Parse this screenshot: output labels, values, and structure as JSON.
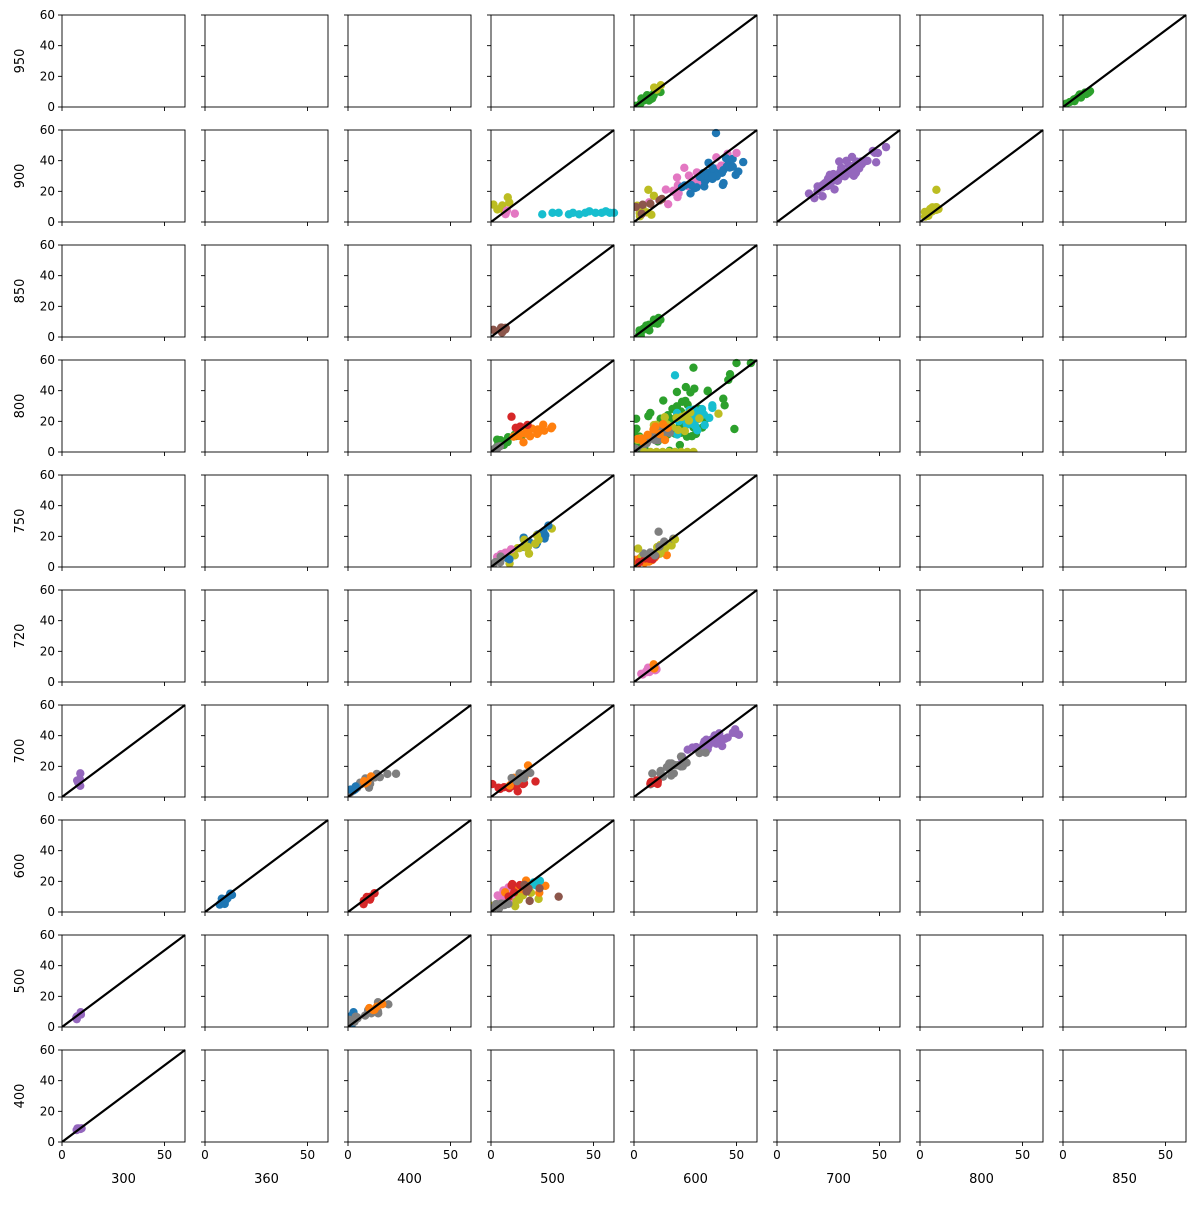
{
  "chart_data": {
    "type": "scatter",
    "layout": "grid-of-subplots",
    "grid": {
      "rows": 10,
      "cols": 8
    },
    "row_labels": [
      "950",
      "900",
      "850",
      "800",
      "750",
      "720",
      "700",
      "600",
      "500",
      "400"
    ],
    "col_labels": [
      "300",
      "360",
      "400",
      "500",
      "600",
      "700",
      "800",
      "850"
    ],
    "xlim": [
      0,
      60
    ],
    "ylim": [
      0,
      60
    ],
    "xticks": [
      0,
      50
    ],
    "yticks": [
      0,
      20,
      40,
      60
    ],
    "identity_line": true,
    "grid_lines": false,
    "colors": {
      "blue": "#1f77b4",
      "orange": "#ff7f0e",
      "green": "#2ca02c",
      "red": "#d62728",
      "purple": "#9467bd",
      "brown": "#8c564b",
      "pink": "#e377c2",
      "gray": "#7f7f7f",
      "olive": "#bcbd22",
      "cyan": "#17becf",
      "line": "#000000"
    },
    "panels": [
      {
        "row": 0,
        "col": 4,
        "line": true,
        "clusters": [
          {
            "color": "green",
            "n": 14,
            "cx": 8,
            "cy": 7,
            "sx": 4,
            "sy": 3,
            "corr": 0.9
          },
          {
            "color": "olive",
            "n": 3,
            "cx": 14,
            "cy": 15,
            "sx": 3,
            "sy": 3,
            "corr": 0.8
          }
        ]
      },
      {
        "row": 0,
        "col": 7,
        "line": true,
        "clusters": [
          {
            "color": "green",
            "n": 22,
            "cx": 8,
            "cy": 7,
            "sx": 4,
            "sy": 3,
            "corr": 0.95
          }
        ]
      },
      {
        "row": 1,
        "col": 3,
        "line": true,
        "clusters": [
          {
            "color": "olive",
            "n": 8,
            "cx": 6,
            "cy": 10,
            "sx": 2,
            "sy": 4,
            "corr": 0.3
          },
          {
            "color": "pink",
            "n": 3,
            "cx": 8,
            "cy": 7,
            "sx": 2,
            "sy": 2,
            "corr": 0.2
          }
        ],
        "points": [
          {
            "color": "cyan",
            "xy": [
              [
                25,
                5
              ],
              [
                30,
                6
              ],
              [
                33,
                6
              ],
              [
                38,
                5
              ],
              [
                40,
                6
              ],
              [
                43,
                5
              ],
              [
                46,
                6
              ],
              [
                48,
                7
              ],
              [
                51,
                6
              ],
              [
                54,
                6
              ],
              [
                56,
                7
              ],
              [
                58,
                6
              ],
              [
                60,
                6
              ]
            ]
          }
        ]
      },
      {
        "row": 1,
        "col": 4,
        "line": true,
        "clusters": [
          {
            "color": "pink",
            "n": 30,
            "cx": 30,
            "cy": 27,
            "sx": 10,
            "sy": 9,
            "corr": 0.85
          },
          {
            "color": "blue",
            "n": 40,
            "cx": 38,
            "cy": 30,
            "sx": 6,
            "sy": 5,
            "corr": 0.6
          },
          {
            "color": "olive",
            "n": 10,
            "cx": 5,
            "cy": 9,
            "sx": 2,
            "sy": 3,
            "corr": 0.4
          },
          {
            "color": "brown",
            "n": 6,
            "cx": 10,
            "cy": 12,
            "sx": 5,
            "sy": 4,
            "corr": 0.7
          }
        ],
        "points": [
          {
            "color": "blue",
            "xy": [
              [
                40,
                58
              ]
            ]
          },
          {
            "color": "pink",
            "xy": [
              [
                50,
                45
              ]
            ]
          },
          {
            "color": "olive",
            "xy": [
              [
                7,
                21
              ]
            ]
          }
        ]
      },
      {
        "row": 1,
        "col": 5,
        "line": true,
        "clusters": [
          {
            "color": "purple",
            "n": 60,
            "cx": 32,
            "cy": 31,
            "sx": 8,
            "sy": 7,
            "corr": 0.93
          }
        ]
      },
      {
        "row": 1,
        "col": 6,
        "line": true,
        "clusters": [
          {
            "color": "olive",
            "n": 12,
            "cx": 5,
            "cy": 7,
            "sx": 2,
            "sy": 2,
            "corr": 0.7
          }
        ],
        "points": [
          {
            "color": "olive",
            "xy": [
              [
                8,
                21
              ]
            ]
          }
        ]
      },
      {
        "row": 2,
        "col": 3,
        "line": true,
        "clusters": [
          {
            "color": "brown",
            "n": 10,
            "cx": 6,
            "cy": 5,
            "sx": 2,
            "sy": 1,
            "corr": 0.6
          }
        ]
      },
      {
        "row": 2,
        "col": 4,
        "line": true,
        "clusters": [
          {
            "color": "green",
            "n": 16,
            "cx": 7,
            "cy": 7,
            "sx": 3,
            "sy": 3,
            "corr": 0.9
          }
        ]
      },
      {
        "row": 3,
        "col": 3,
        "line": true,
        "clusters": [
          {
            "color": "green",
            "n": 14,
            "cx": 8,
            "cy": 8,
            "sx": 4,
            "sy": 3,
            "corr": 0.85
          },
          {
            "color": "orange",
            "n": 18,
            "cx": 21,
            "cy": 13,
            "sx": 5,
            "sy": 2,
            "corr": 0.6
          },
          {
            "color": "gray",
            "n": 6,
            "cx": 3,
            "cy": 3,
            "sx": 1,
            "sy": 1,
            "corr": 0.7
          },
          {
            "color": "red",
            "n": 3,
            "cx": 15,
            "cy": 16,
            "sx": 3,
            "sy": 2,
            "corr": 0.5
          }
        ],
        "points": [
          {
            "color": "red",
            "xy": [
              [
                10,
                23
              ]
            ]
          }
        ]
      },
      {
        "row": 3,
        "col": 4,
        "line": true,
        "clusters": [
          {
            "color": "green",
            "n": 60,
            "cx": 22,
            "cy": 22,
            "sx": 12,
            "sy": 10,
            "corr": 0.6
          },
          {
            "color": "cyan",
            "n": 30,
            "cx": 30,
            "cy": 23,
            "sx": 8,
            "sy": 5,
            "corr": 0.5
          },
          {
            "color": "olive",
            "n": 25,
            "cx": 15,
            "cy": 15,
            "sx": 8,
            "sy": 6,
            "corr": 0.6
          },
          {
            "color": "gray",
            "n": 20,
            "cx": 8,
            "cy": 8,
            "sx": 5,
            "sy": 4,
            "corr": 0.85
          },
          {
            "color": "orange",
            "n": 10,
            "cx": 8,
            "cy": 12,
            "sx": 4,
            "sy": 3,
            "corr": 0.5
          }
        ],
        "points": [
          {
            "color": "olive",
            "xy": [
              [
                5,
                0
              ],
              [
                8,
                0
              ],
              [
                11,
                0
              ],
              [
                14,
                0
              ],
              [
                17,
                0
              ],
              [
                20,
                0
              ],
              [
                23,
                0
              ],
              [
                26,
                0
              ],
              [
                29,
                0
              ]
            ]
          },
          {
            "color": "green",
            "xy": [
              [
                50,
                58
              ],
              [
                57,
                58
              ],
              [
                29,
                55
              ],
              [
                46,
                47
              ],
              [
                36,
                40
              ]
            ]
          },
          {
            "color": "cyan",
            "xy": [
              [
                20,
                50
              ]
            ]
          }
        ]
      },
      {
        "row": 4,
        "col": 3,
        "line": true,
        "clusters": [
          {
            "color": "blue",
            "n": 12,
            "cx": 18,
            "cy": 15,
            "sx": 6,
            "sy": 5,
            "corr": 0.7
          },
          {
            "color": "olive",
            "n": 15,
            "cx": 15,
            "cy": 13,
            "sx": 6,
            "sy": 5,
            "corr": 0.8
          },
          {
            "color": "pink",
            "n": 4,
            "cx": 5,
            "cy": 8,
            "sx": 2,
            "sy": 2,
            "corr": 0.5
          },
          {
            "color": "gray",
            "n": 5,
            "cx": 4,
            "cy": 4,
            "sx": 2,
            "sy": 2,
            "corr": 0.8
          }
        ],
        "points": [
          {
            "color": "blue",
            "xy": [
              [
                28,
                27
              ],
              [
                9,
                5
              ]
            ]
          }
        ]
      },
      {
        "row": 4,
        "col": 4,
        "line": true,
        "clusters": [
          {
            "color": "orange",
            "n": 20,
            "cx": 6,
            "cy": 5,
            "sx": 4,
            "sy": 2,
            "corr": 0.6
          },
          {
            "color": "olive",
            "n": 10,
            "cx": 10,
            "cy": 9,
            "sx": 5,
            "sy": 3,
            "corr": 0.7
          },
          {
            "color": "red",
            "n": 6,
            "cx": 8,
            "cy": 6,
            "sx": 3,
            "sy": 2,
            "corr": 0.5
          },
          {
            "color": "gray",
            "n": 6,
            "cx": 12,
            "cy": 13,
            "sx": 4,
            "sy": 3,
            "corr": 0.7
          }
        ],
        "points": [
          {
            "color": "gray",
            "xy": [
              [
                12,
                23
              ]
            ]
          },
          {
            "color": "olive",
            "xy": [
              [
                20,
                18
              ],
              [
                2,
                12
              ]
            ]
          }
        ]
      },
      {
        "row": 5,
        "col": 4,
        "line": true,
        "clusters": [
          {
            "color": "pink",
            "n": 12,
            "cx": 6,
            "cy": 6,
            "sx": 3,
            "sy": 2,
            "corr": 0.85
          },
          {
            "color": "orange",
            "n": 3,
            "cx": 10,
            "cy": 10,
            "sx": 2,
            "sy": 2,
            "corr": 0.7
          }
        ]
      },
      {
        "row": 6,
        "col": 0,
        "line": true,
        "clusters": [
          {
            "color": "purple",
            "n": 6,
            "cx": 9,
            "cy": 10,
            "sx": 1,
            "sy": 2,
            "corr": 0.2
          }
        ]
      },
      {
        "row": 6,
        "col": 2,
        "line": true,
        "clusters": [
          {
            "color": "gray",
            "n": 20,
            "cx": 10,
            "cy": 10,
            "sx": 5,
            "sy": 4,
            "corr": 0.8
          },
          {
            "color": "blue",
            "n": 5,
            "cx": 3,
            "cy": 5,
            "sx": 1,
            "sy": 2,
            "corr": 0.2
          },
          {
            "color": "orange",
            "n": 4,
            "cx": 9,
            "cy": 9,
            "sx": 2,
            "sy": 2,
            "corr": 0.6
          }
        ]
      },
      {
        "row": 6,
        "col": 3,
        "line": true,
        "clusters": [
          {
            "color": "red",
            "n": 14,
            "cx": 10,
            "cy": 7,
            "sx": 5,
            "sy": 2,
            "corr": 0.5
          },
          {
            "color": "orange",
            "n": 8,
            "cx": 12,
            "cy": 12,
            "sx": 3,
            "sy": 3,
            "corr": 0.7
          },
          {
            "color": "gray",
            "n": 8,
            "cx": 14,
            "cy": 13,
            "sx": 4,
            "sy": 3,
            "corr": 0.8
          }
        ]
      },
      {
        "row": 6,
        "col": 4,
        "line": true,
        "clusters": [
          {
            "color": "purple",
            "n": 40,
            "cx": 38,
            "cy": 35,
            "sx": 7,
            "sy": 5,
            "corr": 0.85
          },
          {
            "color": "gray",
            "n": 20,
            "cx": 20,
            "cy": 20,
            "sx": 7,
            "sy": 6,
            "corr": 0.85
          },
          {
            "color": "red",
            "n": 6,
            "cx": 10,
            "cy": 9,
            "sx": 3,
            "sy": 2,
            "corr": 0.5
          }
        ]
      },
      {
        "row": 7,
        "col": 1,
        "line": true,
        "clusters": [
          {
            "color": "blue",
            "n": 12,
            "cx": 10,
            "cy": 9,
            "sx": 2,
            "sy": 2,
            "corr": 0.8
          }
        ]
      },
      {
        "row": 7,
        "col": 2,
        "line": true,
        "clusters": [
          {
            "color": "red",
            "n": 12,
            "cx": 10,
            "cy": 9,
            "sx": 2,
            "sy": 2,
            "corr": 0.8
          }
        ]
      },
      {
        "row": 7,
        "col": 3,
        "line": true,
        "clusters": [
          {
            "color": "olive",
            "n": 20,
            "cx": 12,
            "cy": 9,
            "sx": 6,
            "sy": 4,
            "corr": 0.7
          },
          {
            "color": "pink",
            "n": 10,
            "cx": 7,
            "cy": 12,
            "sx": 3,
            "sy": 3,
            "corr": 0.3
          },
          {
            "color": "orange",
            "n": 10,
            "cx": 18,
            "cy": 16,
            "sx": 4,
            "sy": 3,
            "corr": 0.7
          },
          {
            "color": "red",
            "n": 5,
            "cx": 12,
            "cy": 17,
            "sx": 3,
            "sy": 2,
            "corr": 0.5
          },
          {
            "color": "gray",
            "n": 8,
            "cx": 5,
            "cy": 4,
            "sx": 3,
            "sy": 2,
            "corr": 0.8
          },
          {
            "color": "cyan",
            "n": 5,
            "cx": 22,
            "cy": 19,
            "sx": 3,
            "sy": 2,
            "corr": 0.6
          },
          {
            "color": "brown",
            "n": 5,
            "cx": 22,
            "cy": 13,
            "sx": 6,
            "sy": 3,
            "corr": 0.5
          }
        ],
        "points": [
          {
            "color": "brown",
            "xy": [
              [
                33,
                10
              ]
            ]
          }
        ]
      },
      {
        "row": 8,
        "col": 0,
        "line": true,
        "clusters": [
          {
            "color": "purple",
            "n": 6,
            "cx": 8,
            "cy": 8,
            "sx": 1,
            "sy": 2,
            "corr": 0.3
          }
        ]
      },
      {
        "row": 8,
        "col": 2,
        "line": true,
        "clusters": [
          {
            "color": "blue",
            "n": 8,
            "cx": 2,
            "cy": 6,
            "sx": 1,
            "sy": 3,
            "corr": 0.1
          },
          {
            "color": "gray",
            "n": 15,
            "cx": 8,
            "cy": 7,
            "sx": 5,
            "sy": 4,
            "corr": 0.8
          },
          {
            "color": "orange",
            "n": 5,
            "cx": 12,
            "cy": 11,
            "sx": 2,
            "sy": 2,
            "corr": 0.7
          }
        ]
      },
      {
        "row": 9,
        "col": 0,
        "line": true,
        "clusters": [
          {
            "color": "purple",
            "n": 5,
            "cx": 8,
            "cy": 8,
            "sx": 1,
            "sy": 1,
            "corr": 0.3
          }
        ]
      }
    ]
  }
}
